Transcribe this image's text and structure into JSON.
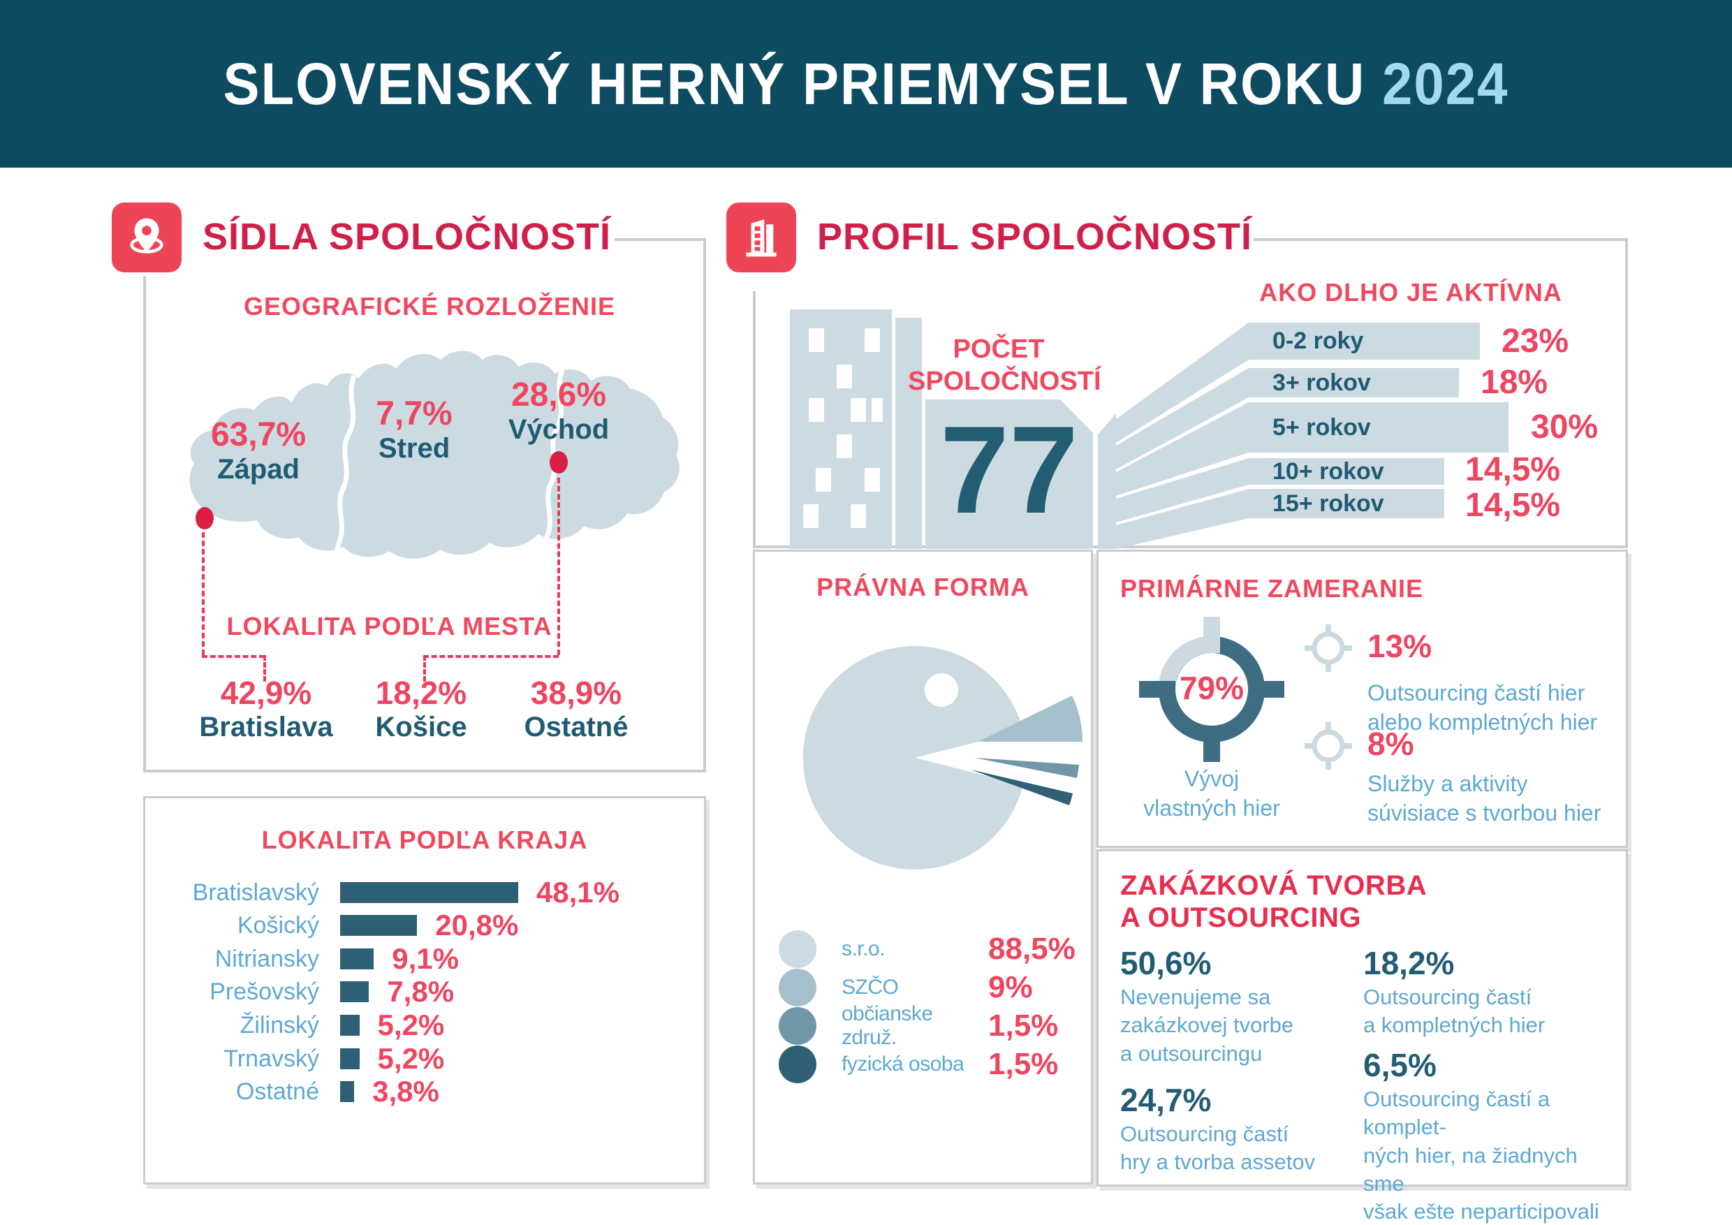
{
  "header": {
    "title": "SLOVENSKÝ HERNÝ PRIEMYSEL V ROKU",
    "year": "2024"
  },
  "left_panel": {
    "title": "SÍDLA SPOLOČNOSTÍ"
  },
  "right_panel": {
    "title": "PROFIL SPOLOČNOSTÍ",
    "count_label": "POČET\nSPOLOČNOSTÍ",
    "count_value": "77"
  },
  "colors": {
    "header_bg": "#0d4b61",
    "year_light_blue": "#a3d8f3",
    "title_red": "#d0204a",
    "subtitle_red": "#f0495e",
    "value_red": "#ee4560",
    "dark_teal": "#1f5b73",
    "light_blue_text": "#5da8d4",
    "shape_light": "#ccdae1",
    "kraj_bar_teal": "#2d5f77",
    "target_teal": "#3e6d83",
    "border_gray": "#c9cccd"
  },
  "chart_data": [
    {
      "id": "geographic_distribution",
      "type": "table",
      "render": "map-regions",
      "title": "GEOGRAFICKÉ ROZLOŽENIE",
      "categories": [
        "Západ",
        "Stred",
        "Východ"
      ],
      "values": [
        63.7,
        7.7,
        28.6
      ],
      "value_labels": [
        "63,7%",
        "7,7%",
        "28,6%"
      ]
    },
    {
      "id": "location_by_city",
      "type": "table",
      "title": "LOKALITA PODĽA MESTA",
      "categories": [
        "Bratislava",
        "Košice",
        "Ostatné"
      ],
      "values": [
        42.9,
        18.2,
        38.9
      ],
      "value_labels": [
        "42,9%",
        "18,2%",
        "38,9%"
      ]
    },
    {
      "id": "location_by_kraj",
      "type": "bar",
      "orientation": "horizontal",
      "title": "LOKALITA PODĽA KRAJA",
      "categories": [
        "Bratislavský",
        "Košický",
        "Nitriansky",
        "Prešovský",
        "Žilinský",
        "Trnavský",
        "Ostatné"
      ],
      "values": [
        48.1,
        20.8,
        9.1,
        7.8,
        5.2,
        5.2,
        3.8
      ],
      "value_labels": [
        "48,1%",
        "20,8%",
        "9,1%",
        "7,8%",
        "5,2%",
        "5,2%",
        "3,8%"
      ]
    },
    {
      "id": "company_age",
      "type": "bar",
      "orientation": "horizontal",
      "title": "AKO DLHO JE AKTÍVNA",
      "categories": [
        "0-2 roky",
        "3+ rokov",
        "5+ rokov",
        "10+ rokov",
        "15+ rokov"
      ],
      "values": [
        23,
        18,
        30,
        14.5,
        14.5
      ],
      "value_labels": [
        "23%",
        "18%",
        "30%",
        "14,5%",
        "14,5%"
      ]
    },
    {
      "id": "legal_form",
      "type": "pie",
      "title": "PRÁVNA FORMA",
      "categories": [
        "s.r.o.",
        "SZČO",
        "občianske združ.",
        "fyzická osoba"
      ],
      "values": [
        88.5,
        9,
        1.5,
        1.5
      ],
      "value_labels": [
        "88,5%",
        "9%",
        "1,5%",
        "1,5%"
      ],
      "colors": [
        "#ccdbe2",
        "#a5c0cc",
        "#6f97a8",
        "#2f6076"
      ],
      "legend_position": "bottom-left"
    },
    {
      "id": "primary_focus",
      "type": "pie",
      "render": "target-icons",
      "title": "PRIMÁRNE ZAMERANIE",
      "categories": [
        "Vývoj\nvlastných hier",
        "Outsourcing častí hier\nalebo kompletných hier",
        "Služby a aktivity\nsúvisiace s tvorbou hier"
      ],
      "values": [
        79,
        13,
        8
      ],
      "value_labels": [
        "79%",
        "13%",
        "8%"
      ]
    },
    {
      "id": "custom_work_outsourcing",
      "type": "table",
      "title": "ZAKÁZKOVÁ TVORBA\nA OUTSOURCING",
      "categories": [
        "Nevenujeme sa\nzakázkovej tvorbe\na outsourcingu",
        "Outsourcing častí\nhry a tvorba assetov",
        "Outsourcing častí\na kompletných hier",
        "Outsourcing častí a komplet-\nných hier, na žiadnych sme\nvšak ešte neparticipovali"
      ],
      "values": [
        50.6,
        24.7,
        18.2,
        6.5
      ],
      "value_labels": [
        "50,6%",
        "24,7%",
        "18,2%",
        "6,5%"
      ]
    }
  ]
}
